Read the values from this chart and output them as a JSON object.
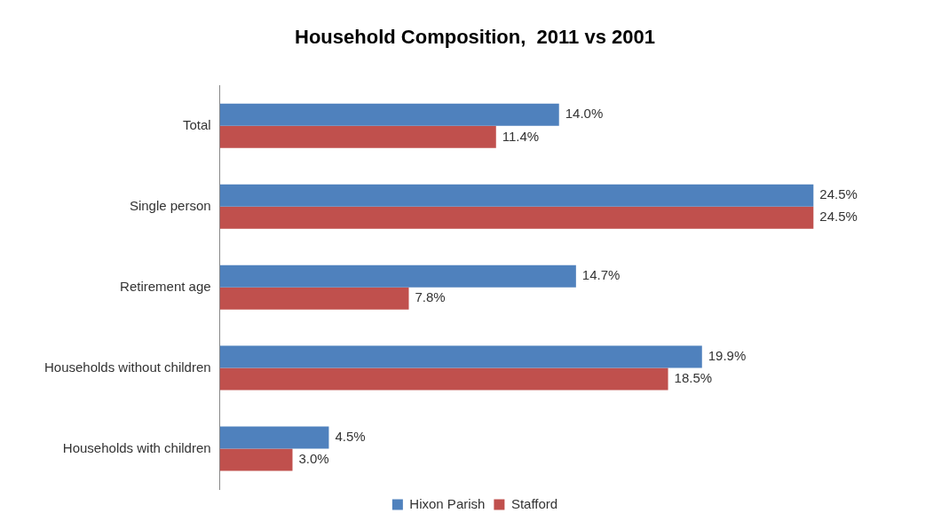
{
  "chart_data": {
    "type": "bar",
    "orientation": "horizontal",
    "title": "Household Composition,  2011 vs 2001",
    "categories": [
      "Total",
      "Single person",
      "Retirement age",
      "Households without children",
      "Households with children"
    ],
    "series": [
      {
        "name": "Hixon Parish",
        "color": "#4f81bd",
        "values": [
          14.0,
          24.5,
          14.7,
          19.9,
          4.5
        ],
        "value_labels": [
          "14.0%",
          "24.5%",
          "14.7%",
          "19.9%",
          "4.5%"
        ]
      },
      {
        "name": "Stafford",
        "color": "#c0504d",
        "values": [
          11.4,
          24.5,
          7.8,
          18.5,
          3.0
        ],
        "value_labels": [
          "11.4%",
          "24.5%",
          "7.8%",
          "18.5%",
          "3.0%"
        ]
      }
    ],
    "legend": "bottom"
  }
}
